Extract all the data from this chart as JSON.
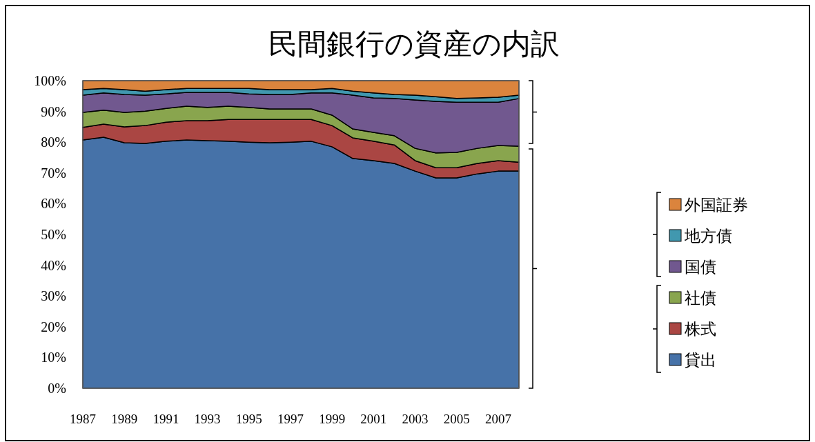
{
  "chart_data": {
    "type": "area",
    "stacked": true,
    "title": "民間銀行の資産の内訳",
    "categories": [
      "1987",
      null,
      "1989",
      null,
      "1991",
      null,
      "1993",
      null,
      "1995",
      null,
      "1997",
      null,
      "1999",
      null,
      "2001",
      null,
      "2003",
      null,
      "2005",
      null,
      "2007",
      null
    ],
    "ylim": [
      0,
      100
    ],
    "yticks": [
      {
        "value": 0,
        "label": "0%"
      },
      {
        "value": 10,
        "label": "10%"
      },
      {
        "value": 20,
        "label": "20%"
      },
      {
        "value": 30,
        "label": "30%"
      },
      {
        "value": 40,
        "label": "40%"
      },
      {
        "value": 50,
        "label": "50%"
      },
      {
        "value": 60,
        "label": "60%"
      },
      {
        "value": 70,
        "label": "70%"
      },
      {
        "value": 80,
        "label": "80%"
      },
      {
        "value": 90,
        "label": "90%"
      },
      {
        "value": 100,
        "label": "100%"
      }
    ],
    "legend": "right",
    "series": [
      {
        "name": "貸出",
        "color": "#4672a8",
        "values": [
          80.7,
          81.6,
          79.8,
          79.6,
          80.3,
          80.7,
          80.5,
          80.3,
          80.0,
          79.8,
          80.0,
          80.3,
          78.5,
          74.7,
          74.0,
          73.1,
          70.6,
          68.4,
          68.4,
          69.7,
          70.6,
          70.6
        ]
      },
      {
        "name": "株式",
        "color": "#aa4643",
        "values": [
          4.1,
          4.3,
          5.2,
          5.8,
          6.2,
          6.3,
          6.5,
          7.1,
          7.4,
          7.6,
          7.4,
          7.1,
          6.9,
          6.7,
          6.3,
          6.0,
          3.4,
          3.3,
          3.3,
          3.4,
          3.4,
          2.9
        ]
      },
      {
        "name": "社債",
        "color": "#89a54e",
        "values": [
          4.9,
          4.5,
          4.7,
          4.7,
          4.5,
          4.7,
          4.3,
          4.3,
          3.9,
          3.4,
          3.4,
          3.4,
          3.4,
          2.9,
          2.9,
          3.0,
          4.0,
          4.8,
          5.0,
          4.9,
          4.9,
          5.2
        ]
      },
      {
        "name": "国債",
        "color": "#71588f",
        "values": [
          5.6,
          5.6,
          5.8,
          5.2,
          4.7,
          4.5,
          4.9,
          4.5,
          4.4,
          4.7,
          4.7,
          5.2,
          7.2,
          11.0,
          11.2,
          12.1,
          15.7,
          16.8,
          16.3,
          15.0,
          14.1,
          15.5
        ]
      },
      {
        "name": "地方債",
        "color": "#4198af",
        "values": [
          1.8,
          1.5,
          1.6,
          1.3,
          1.4,
          1.3,
          1.3,
          1.3,
          1.8,
          1.6,
          1.6,
          1.1,
          1.5,
          1.3,
          1.6,
          1.3,
          1.6,
          1.5,
          1.2,
          1.4,
          1.6,
          1.1
        ]
      },
      {
        "name": "外国証券",
        "color": "#db843d",
        "values": [
          2.9,
          2.5,
          2.9,
          3.4,
          2.9,
          2.5,
          2.5,
          2.5,
          2.5,
          2.9,
          2.9,
          2.9,
          2.5,
          3.4,
          4.0,
          4.5,
          4.7,
          5.2,
          5.8,
          5.6,
          5.4,
          4.7
        ]
      }
    ]
  }
}
